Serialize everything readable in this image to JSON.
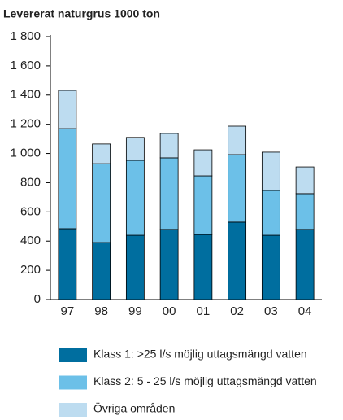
{
  "chart_data": {
    "type": "stacked_bar",
    "title": "Levererat naturgrus 1000 ton",
    "categories": [
      "97",
      "98",
      "99",
      "00",
      "01",
      "02",
      "03",
      "04"
    ],
    "series": [
      {
        "name": "Klass 1: >25 l/s möjlig uttagsmängd vatten",
        "color": "#006e9f",
        "values": [
          485,
          390,
          440,
          480,
          445,
          530,
          440,
          480
        ]
      },
      {
        "name": "Klass 2: 5 - 25 l/s möjlig uttagsmängd vatten",
        "color": "#6cc0e8",
        "values": [
          685,
          540,
          513,
          490,
          402,
          462,
          307,
          245
        ]
      },
      {
        "name": "Övriga områden",
        "color": "#bddcf0",
        "values": [
          262,
          135,
          157,
          167,
          178,
          195,
          262,
          183
        ]
      }
    ],
    "ylim": [
      0,
      1800
    ],
    "yticks": [
      0,
      200,
      400,
      600,
      800,
      {
        "value": 1000,
        "label": "1 000"
      },
      {
        "value": 1200,
        "label": "1 200"
      },
      {
        "value": 1400,
        "label": "1 400"
      },
      {
        "value": 1600,
        "label": "1 600"
      },
      {
        "value": 1800,
        "label": "1 800"
      }
    ]
  }
}
